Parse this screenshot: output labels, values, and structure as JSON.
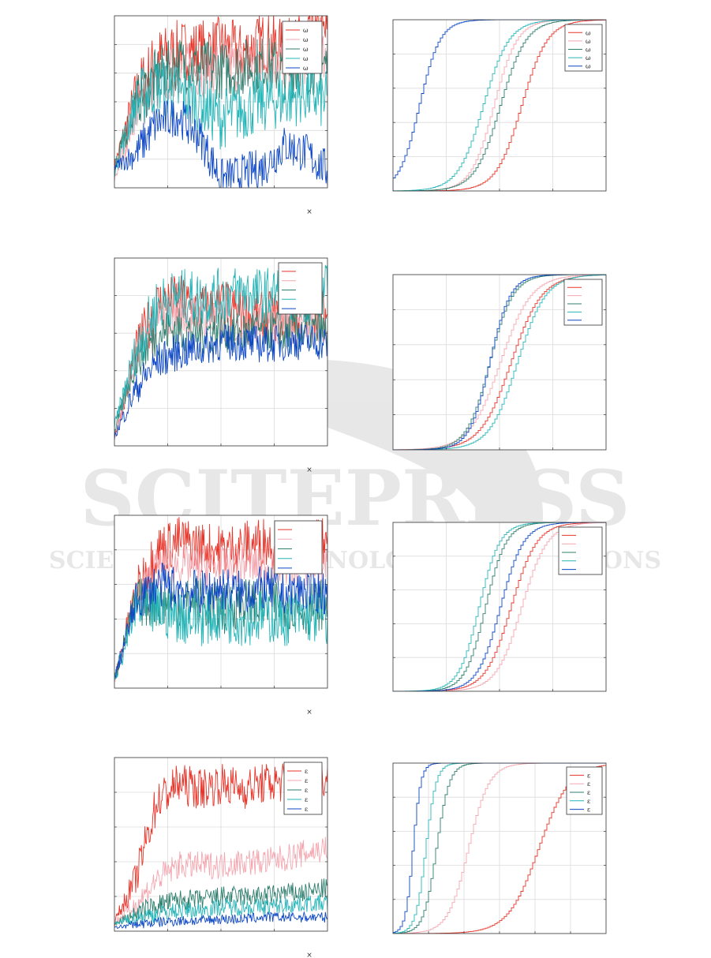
{
  "figure": {
    "x_multiplier_symbol": "×",
    "watermark": {
      "brand": "SCITEPRESS",
      "tagline": "SCIENCE AND TECHNOLOGY PUBLICATIONS"
    }
  },
  "colors": {
    "red": "#e8352a",
    "pink": "#f4a7b0",
    "darkteal": "#2f7f6e",
    "cyan": "#27b5b8",
    "blue": "#0d47c6"
  },
  "series_order": [
    "red",
    "pink",
    "darkteal",
    "cyan",
    "blue"
  ],
  "chart_data": [
    {
      "type": "line",
      "panel": "time-series-row-1",
      "legend_labels": [
        "ω",
        "ω",
        "ω",
        "ω",
        "ω"
      ],
      "legend_placement": "top-right",
      "grid": true,
      "xlim": [
        0,
        1
      ],
      "ylim": [
        0,
        1
      ],
      "description_of_series": [
        "red",
        "pink",
        "darkteal",
        "cyan",
        "blue"
      ],
      "series": [
        {
          "color_key": "red",
          "levels": [
            0.12,
            0.55,
            0.75,
            0.8,
            0.8,
            0.82,
            0.78,
            0.85,
            0.8,
            0.85,
            0.9
          ],
          "noise": 0.18
        },
        {
          "color_key": "pink",
          "levels": [
            0.05,
            0.45,
            0.6,
            0.7,
            0.68,
            0.72,
            0.7,
            0.75,
            0.72,
            0.75,
            0.78
          ],
          "noise": 0.16
        },
        {
          "color_key": "darkteal",
          "levels": [
            0.1,
            0.5,
            0.65,
            0.72,
            0.7,
            0.68,
            0.7,
            0.72,
            0.68,
            0.7,
            0.72
          ],
          "noise": 0.17
        },
        {
          "color_key": "cyan",
          "levels": [
            0.1,
            0.5,
            0.6,
            0.55,
            0.5,
            0.4,
            0.45,
            0.5,
            0.52,
            0.55,
            0.5
          ],
          "noise": 0.18
        },
        {
          "color_key": "blue",
          "levels": [
            0.12,
            0.2,
            0.38,
            0.42,
            0.3,
            0.05,
            0.08,
            0.12,
            0.25,
            0.2,
            0.1
          ],
          "noise": 0.12
        }
      ]
    },
    {
      "type": "line",
      "panel": "cdf-row-1",
      "legend_labels": [
        "ω",
        "ω",
        "ω",
        "ω",
        "ω"
      ],
      "legend_placement": "top-right",
      "grid": true,
      "xlim": [
        0,
        1
      ],
      "ylim": [
        0,
        1
      ],
      "series": [
        {
          "color_key": "red",
          "median": 0.6,
          "spread": 0.1
        },
        {
          "color_key": "pink",
          "median": 0.47,
          "spread": 0.09
        },
        {
          "color_key": "darkteal",
          "median": 0.5,
          "spread": 0.1
        },
        {
          "color_key": "cyan",
          "median": 0.42,
          "spread": 0.1
        },
        {
          "color_key": "blue",
          "median": 0.12,
          "spread": 0.08
        }
      ]
    },
    {
      "type": "line",
      "panel": "time-series-row-2",
      "legend_labels": [
        "",
        "",
        "",
        "",
        ""
      ],
      "legend_placement": "top-right",
      "grid": true,
      "xlim": [
        0,
        1
      ],
      "ylim": [
        0,
        1
      ],
      "series": [
        {
          "color_key": "red",
          "levels": [
            0.05,
            0.5,
            0.75,
            0.78,
            0.72,
            0.75,
            0.7,
            0.68,
            0.7,
            0.72,
            0.7
          ],
          "noise": 0.14
        },
        {
          "color_key": "pink",
          "levels": [
            0.05,
            0.45,
            0.65,
            0.7,
            0.68,
            0.66,
            0.65,
            0.64,
            0.66,
            0.65,
            0.64
          ],
          "noise": 0.12
        },
        {
          "color_key": "darkteal",
          "levels": [
            0.08,
            0.45,
            0.6,
            0.62,
            0.6,
            0.62,
            0.6,
            0.62,
            0.6,
            0.62,
            0.6
          ],
          "noise": 0.12
        },
        {
          "color_key": "cyan",
          "levels": [
            0.1,
            0.5,
            0.75,
            0.8,
            0.78,
            0.8,
            0.82,
            0.8,
            0.82,
            0.8,
            0.82
          ],
          "noise": 0.15
        },
        {
          "color_key": "blue",
          "levels": [
            0.05,
            0.3,
            0.45,
            0.5,
            0.52,
            0.55,
            0.55,
            0.54,
            0.55,
            0.56,
            0.55
          ],
          "noise": 0.1
        }
      ]
    },
    {
      "type": "line",
      "panel": "cdf-row-2",
      "legend_labels": [
        "",
        "",
        "",
        "",
        ""
      ],
      "legend_placement": "top-right",
      "grid": true,
      "xlim": [
        0,
        1
      ],
      "ylim": [
        0,
        1
      ],
      "series": [
        {
          "color_key": "red",
          "median": 0.55,
          "spread": 0.12
        },
        {
          "color_key": "pink",
          "median": 0.5,
          "spread": 0.12
        },
        {
          "color_key": "darkteal",
          "median": 0.45,
          "spread": 0.09
        },
        {
          "color_key": "cyan",
          "median": 0.58,
          "spread": 0.11
        },
        {
          "color_key": "blue",
          "median": 0.45,
          "spread": 0.08
        }
      ]
    },
    {
      "type": "line",
      "panel": "time-series-row-3",
      "legend_labels": [
        "",
        "",
        "",
        "",
        ""
      ],
      "legend_placement": "top-right",
      "grid": true,
      "xlim": [
        0,
        1
      ],
      "ylim": [
        0,
        1
      ],
      "series": [
        {
          "color_key": "red",
          "levels": [
            0.05,
            0.55,
            0.8,
            0.85,
            0.82,
            0.8,
            0.82,
            0.85,
            0.82,
            0.8,
            0.85
          ],
          "noise": 0.15
        },
        {
          "color_key": "pink",
          "levels": [
            0.05,
            0.5,
            0.7,
            0.72,
            0.7,
            0.7,
            0.72,
            0.7,
            0.72,
            0.7,
            0.72
          ],
          "noise": 0.12
        },
        {
          "color_key": "darkteal",
          "levels": [
            0.05,
            0.5,
            0.5,
            0.48,
            0.5,
            0.45,
            0.5,
            0.48,
            0.5,
            0.45,
            0.5
          ],
          "noise": 0.15
        },
        {
          "color_key": "cyan",
          "levels": [
            0.05,
            0.45,
            0.45,
            0.42,
            0.4,
            0.42,
            0.4,
            0.42,
            0.4,
            0.42,
            0.4
          ],
          "noise": 0.16
        },
        {
          "color_key": "blue",
          "levels": [
            0.05,
            0.5,
            0.6,
            0.58,
            0.55,
            0.58,
            0.55,
            0.58,
            0.55,
            0.57,
            0.55
          ],
          "noise": 0.13
        }
      ]
    },
    {
      "type": "line",
      "panel": "cdf-row-3",
      "legend_labels": [
        "",
        "",
        "",
        "",
        ""
      ],
      "legend_placement": "top-right",
      "grid": true,
      "xlim": [
        0,
        1
      ],
      "ylim": [
        0,
        1
      ],
      "series": [
        {
          "color_key": "red",
          "median": 0.55,
          "spread": 0.1
        },
        {
          "color_key": "pink",
          "median": 0.6,
          "spread": 0.1
        },
        {
          "color_key": "darkteal",
          "median": 0.43,
          "spread": 0.08
        },
        {
          "color_key": "cyan",
          "median": 0.4,
          "spread": 0.08
        },
        {
          "color_key": "blue",
          "median": 0.5,
          "spread": 0.09
        }
      ]
    },
    {
      "type": "line",
      "panel": "time-series-row-4",
      "legend_labels": [
        "ε",
        "ε",
        "ε",
        "ε",
        "ε"
      ],
      "legend_placement": "top-right",
      "grid": true,
      "xlim": [
        0,
        1
      ],
      "ylim": [
        0,
        1
      ],
      "series": [
        {
          "color_key": "red",
          "levels": [
            0.05,
            0.3,
            0.75,
            0.85,
            0.82,
            0.85,
            0.82,
            0.85,
            0.86,
            0.85,
            0.88
          ],
          "noise": 0.12
        },
        {
          "color_key": "pink",
          "levels": [
            0.05,
            0.15,
            0.3,
            0.38,
            0.38,
            0.38,
            0.4,
            0.4,
            0.42,
            0.45,
            0.48
          ],
          "noise": 0.08
        },
        {
          "color_key": "darkteal",
          "levels": [
            0.04,
            0.1,
            0.15,
            0.18,
            0.18,
            0.2,
            0.2,
            0.2,
            0.22,
            0.22,
            0.25
          ],
          "noise": 0.06
        },
        {
          "color_key": "cyan",
          "levels": [
            0.04,
            0.08,
            0.1,
            0.12,
            0.12,
            0.14,
            0.14,
            0.14,
            0.15,
            0.16,
            0.16
          ],
          "noise": 0.05
        },
        {
          "color_key": "blue",
          "levels": [
            0.02,
            0.04,
            0.05,
            0.06,
            0.06,
            0.07,
            0.07,
            0.08,
            0.08,
            0.08,
            0.08
          ],
          "noise": 0.03
        }
      ]
    },
    {
      "type": "line",
      "panel": "cdf-row-4",
      "legend_labels": [
        "ε",
        "ε",
        "ε",
        "ε",
        "ε"
      ],
      "legend_placement": "top-right",
      "grid": true,
      "xlim": [
        0,
        1
      ],
      "ylim": [
        0,
        1
      ],
      "series": [
        {
          "color_key": "red",
          "median": 0.68,
          "spread": 0.12
        },
        {
          "color_key": "pink",
          "median": 0.35,
          "spread": 0.08
        },
        {
          "color_key": "darkteal",
          "median": 0.2,
          "spread": 0.05
        },
        {
          "color_key": "cyan",
          "median": 0.15,
          "spread": 0.04
        },
        {
          "color_key": "blue",
          "median": 0.09,
          "spread": 0.03
        }
      ]
    }
  ]
}
